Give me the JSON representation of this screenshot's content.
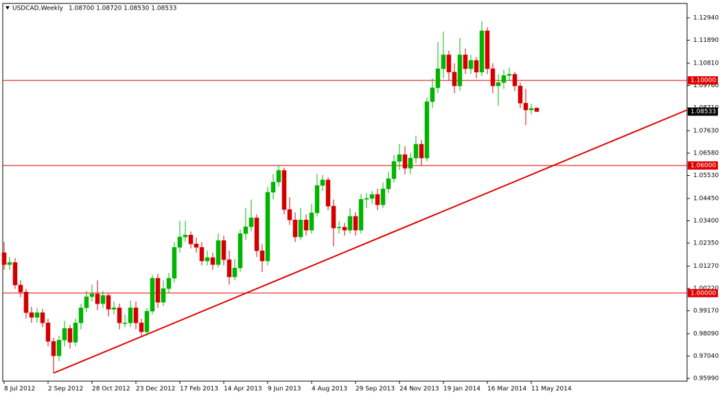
{
  "chart_data": {
    "type": "candlestick",
    "title": "USDCAD,Weekly",
    "subtitle": "1.08700 1.08720 1.08530 1.08533",
    "categories": [
      "8 Jul 2012",
      null,
      null,
      null,
      null,
      null,
      null,
      null,
      "2 Sep 2012",
      null,
      null,
      null,
      null,
      null,
      null,
      null,
      "28 Oct 2012",
      null,
      null,
      null,
      null,
      null,
      null,
      null,
      "23 Dec 2012",
      null,
      null,
      null,
      null,
      null,
      null,
      null,
      "17 Feb 2013",
      null,
      null,
      null,
      null,
      null,
      null,
      null,
      "14 Apr 2013",
      null,
      null,
      null,
      null,
      null,
      null,
      null,
      "9 Jun 2013",
      null,
      null,
      null,
      null,
      null,
      null,
      null,
      "4 Aug 2013",
      null,
      null,
      null,
      null,
      null,
      null,
      null,
      "29 Sep 2013",
      null,
      null,
      null,
      null,
      null,
      null,
      null,
      "24 Nov 2013",
      null,
      null,
      null,
      null,
      null,
      null,
      null,
      "19 Jan 2014",
      null,
      null,
      null,
      null,
      null,
      null,
      null,
      "16 Mar 2014",
      null,
      null,
      null,
      null,
      null,
      null,
      null,
      "11 May 2014",
      null
    ],
    "open": [
      1.019,
      1.0134,
      1.0144,
      1.0038,
      1.0005,
      0.9908,
      0.9886,
      0.9908,
      0.986,
      0.9773,
      0.9705,
      0.9779,
      0.9834,
      0.9769,
      0.986,
      0.9931,
      0.9983,
      0.9996,
      0.995,
      0.9989,
      0.9924,
      0.9931,
      0.986,
      0.986,
      0.9931,
      0.986,
      0.9818,
      0.9915,
      1.007,
      0.9957,
      1.0021,
      1.007,
      1.0215,
      1.0264,
      1.0273,
      1.0231,
      1.0215,
      1.0151,
      1.0167,
      1.0134,
      1.0247,
      1.0157,
      1.0076,
      1.0118,
      1.028,
      1.0312,
      1.0354,
      1.0199,
      1.0151,
      1.0474,
      1.0522,
      1.0577,
      1.0393,
      1.0344,
      1.0264,
      1.0344,
      1.0296,
      1.0377,
      1.0506,
      1.0532,
      1.0409,
      1.0306,
      1.031,
      1.0296,
      1.0361,
      1.0296,
      1.0441,
      1.0445,
      1.0464,
      1.0415,
      1.049,
      1.0538,
      1.0619,
      1.0651,
      1.0587,
      1.0635,
      1.07,
      1.0635,
      1.09,
      1.0965,
      1.1055,
      1.112,
      1.1039,
      1.0974,
      1.112,
      1.1055,
      1.1094,
      1.1039,
      1.1233,
      1.1055,
      1.0974,
      1.099,
      1.1023,
      1.1029,
      1.0974,
      1.0893,
      1.0861,
      1.087
    ],
    "high": [
      1.024,
      1.017,
      1.0165,
      1.006,
      1.002,
      0.9935,
      0.993,
      0.9925,
      0.988,
      0.979,
      0.98,
      0.987,
      0.985,
      0.988,
      0.995,
      1.001,
      1.004,
      1.006,
      1.001,
      1.0,
      0.996,
      0.995,
      0.99,
      0.9965,
      0.996,
      0.988,
      0.993,
      1.0085,
      1.009,
      1.006,
      1.0095,
      1.024,
      1.034,
      1.034,
      1.029,
      1.026,
      1.024,
      1.02,
      1.019,
      1.028,
      1.027,
      1.02,
      1.016,
      1.03,
      1.04,
      1.044,
      1.037,
      1.023,
      1.05,
      1.056,
      1.06,
      1.059,
      1.045,
      1.038,
      1.04,
      1.037,
      1.042,
      1.056,
      1.0555,
      1.0545,
      1.044,
      1.034,
      1.033,
      1.04,
      1.038,
      1.0465,
      1.047,
      1.048,
      1.049,
      1.052,
      1.057,
      1.065,
      1.07,
      1.069,
      1.066,
      1.074,
      1.072,
      1.092,
      1.101,
      1.118,
      1.123,
      1.114,
      1.108,
      1.12,
      1.115,
      1.112,
      1.111,
      1.1278,
      1.125,
      1.108,
      1.103,
      1.105,
      1.106,
      1.104,
      1.099,
      1.096,
      1.089,
      1.0872
    ],
    "low": [
      1.011,
      1.011,
      1.002,
      0.998,
      0.988,
      0.986,
      0.986,
      0.984,
      0.975,
      0.9624,
      0.968,
      0.975,
      0.974,
      0.975,
      0.983,
      0.991,
      0.996,
      0.992,
      0.993,
      0.989,
      0.99,
      0.983,
      0.984,
      0.984,
      0.983,
      0.98,
      0.98,
      0.99,
      0.993,
      0.994,
      1.0,
      1.005,
      1.019,
      1.024,
      1.021,
      1.019,
      1.013,
      1.013,
      1.011,
      1.012,
      1.013,
      1.004,
      1.006,
      1.01,
      1.025,
      1.029,
      1.017,
      1.01,
      1.013,
      1.044,
      1.05,
      1.037,
      1.032,
      1.024,
      1.025,
      1.027,
      1.028,
      1.036,
      1.048,
      1.039,
      1.022,
      1.028,
      1.027,
      1.028,
      1.027,
      1.028,
      1.04,
      1.042,
      1.039,
      1.04,
      1.047,
      1.052,
      1.058,
      1.056,
      1.056,
      1.061,
      1.06,
      1.062,
      1.087,
      1.094,
      1.101,
      1.1,
      1.094,
      1.095,
      1.103,
      1.103,
      1.101,
      1.102,
      1.103,
      1.094,
      1.088,
      1.096,
      1.1,
      1.095,
      1.087,
      1.079,
      1.084,
      1.0853
    ],
    "close": [
      1.0134,
      1.0144,
      1.0038,
      1.0005,
      0.9908,
      0.9886,
      0.9908,
      0.986,
      0.9773,
      0.9705,
      0.9779,
      0.9834,
      0.9769,
      0.986,
      0.9931,
      0.9983,
      0.9996,
      0.995,
      0.9989,
      0.9924,
      0.9931,
      0.986,
      0.986,
      0.9931,
      0.986,
      0.9818,
      0.9915,
      1.007,
      0.9957,
      1.0021,
      1.007,
      1.0215,
      1.0264,
      1.0273,
      1.0231,
      1.0215,
      1.0151,
      1.0167,
      1.0134,
      1.0247,
      1.0157,
      1.0076,
      1.0118,
      1.028,
      1.0312,
      1.0354,
      1.0199,
      1.0151,
      1.0474,
      1.0522,
      1.0577,
      1.0393,
      1.0344,
      1.0264,
      1.0344,
      1.0296,
      1.0377,
      1.0506,
      1.0532,
      1.0409,
      1.0306,
      1.031,
      1.0296,
      1.0361,
      1.0296,
      1.0441,
      1.0445,
      1.0464,
      1.0415,
      1.049,
      1.0538,
      1.0619,
      1.0651,
      1.0587,
      1.0635,
      1.07,
      1.0635,
      1.09,
      1.0965,
      1.1055,
      1.112,
      1.1039,
      1.0974,
      1.112,
      1.1055,
      1.1094,
      1.1039,
      1.1233,
      1.1055,
      1.0974,
      1.099,
      1.1023,
      1.1029,
      1.0974,
      1.0893,
      1.0861,
      1.0868,
      1.08533
    ],
    "up_color": "#00b400",
    "down_color": "#d40000",
    "xlim": [
      -0.25,
      124.375
    ],
    "ylim": [
      0.95861,
      1.13618
    ],
    "yticks": [
      {
        "value": 1.1294,
        "label": "1.12940"
      },
      {
        "value": 1.1189,
        "label": "1.11890"
      },
      {
        "value": 1.1081,
        "label": "1.10810"
      },
      {
        "value": 1.0976,
        "label": "1.09760"
      },
      {
        "value": 1.0871,
        "label": "1.08710"
      },
      {
        "value": 1.0763,
        "label": "1.07630"
      },
      {
        "value": 1.0658,
        "label": "1.06580"
      },
      {
        "value": 1.0553,
        "label": "1.05530"
      },
      {
        "value": 1.0445,
        "label": "1.04450"
      },
      {
        "value": 1.034,
        "label": "1.03400"
      },
      {
        "value": 1.0235,
        "label": "1.02350"
      },
      {
        "value": 1.0127,
        "label": "1.01270"
      },
      {
        "value": 1.0022,
        "label": "1.00220"
      },
      {
        "value": 0.9917,
        "label": "0.99170"
      },
      {
        "value": 0.9809,
        "label": "0.98090"
      },
      {
        "value": 0.9704,
        "label": "0.97040"
      },
      {
        "value": 0.9599,
        "label": "0.95990"
      }
    ],
    "hlines": [
      {
        "value": 1.1,
        "label": "1.10000"
      },
      {
        "value": 1.06,
        "label": "1.06000"
      },
      {
        "value": 1.0,
        "label": "1.00000"
      }
    ],
    "hline_color": "#e00000",
    "last_price": 1.08533,
    "trendline": {
      "x": [
        9,
        124.375
      ],
      "y": [
        0.9624,
        1.0861
      ],
      "color": "#e00000"
    }
  }
}
